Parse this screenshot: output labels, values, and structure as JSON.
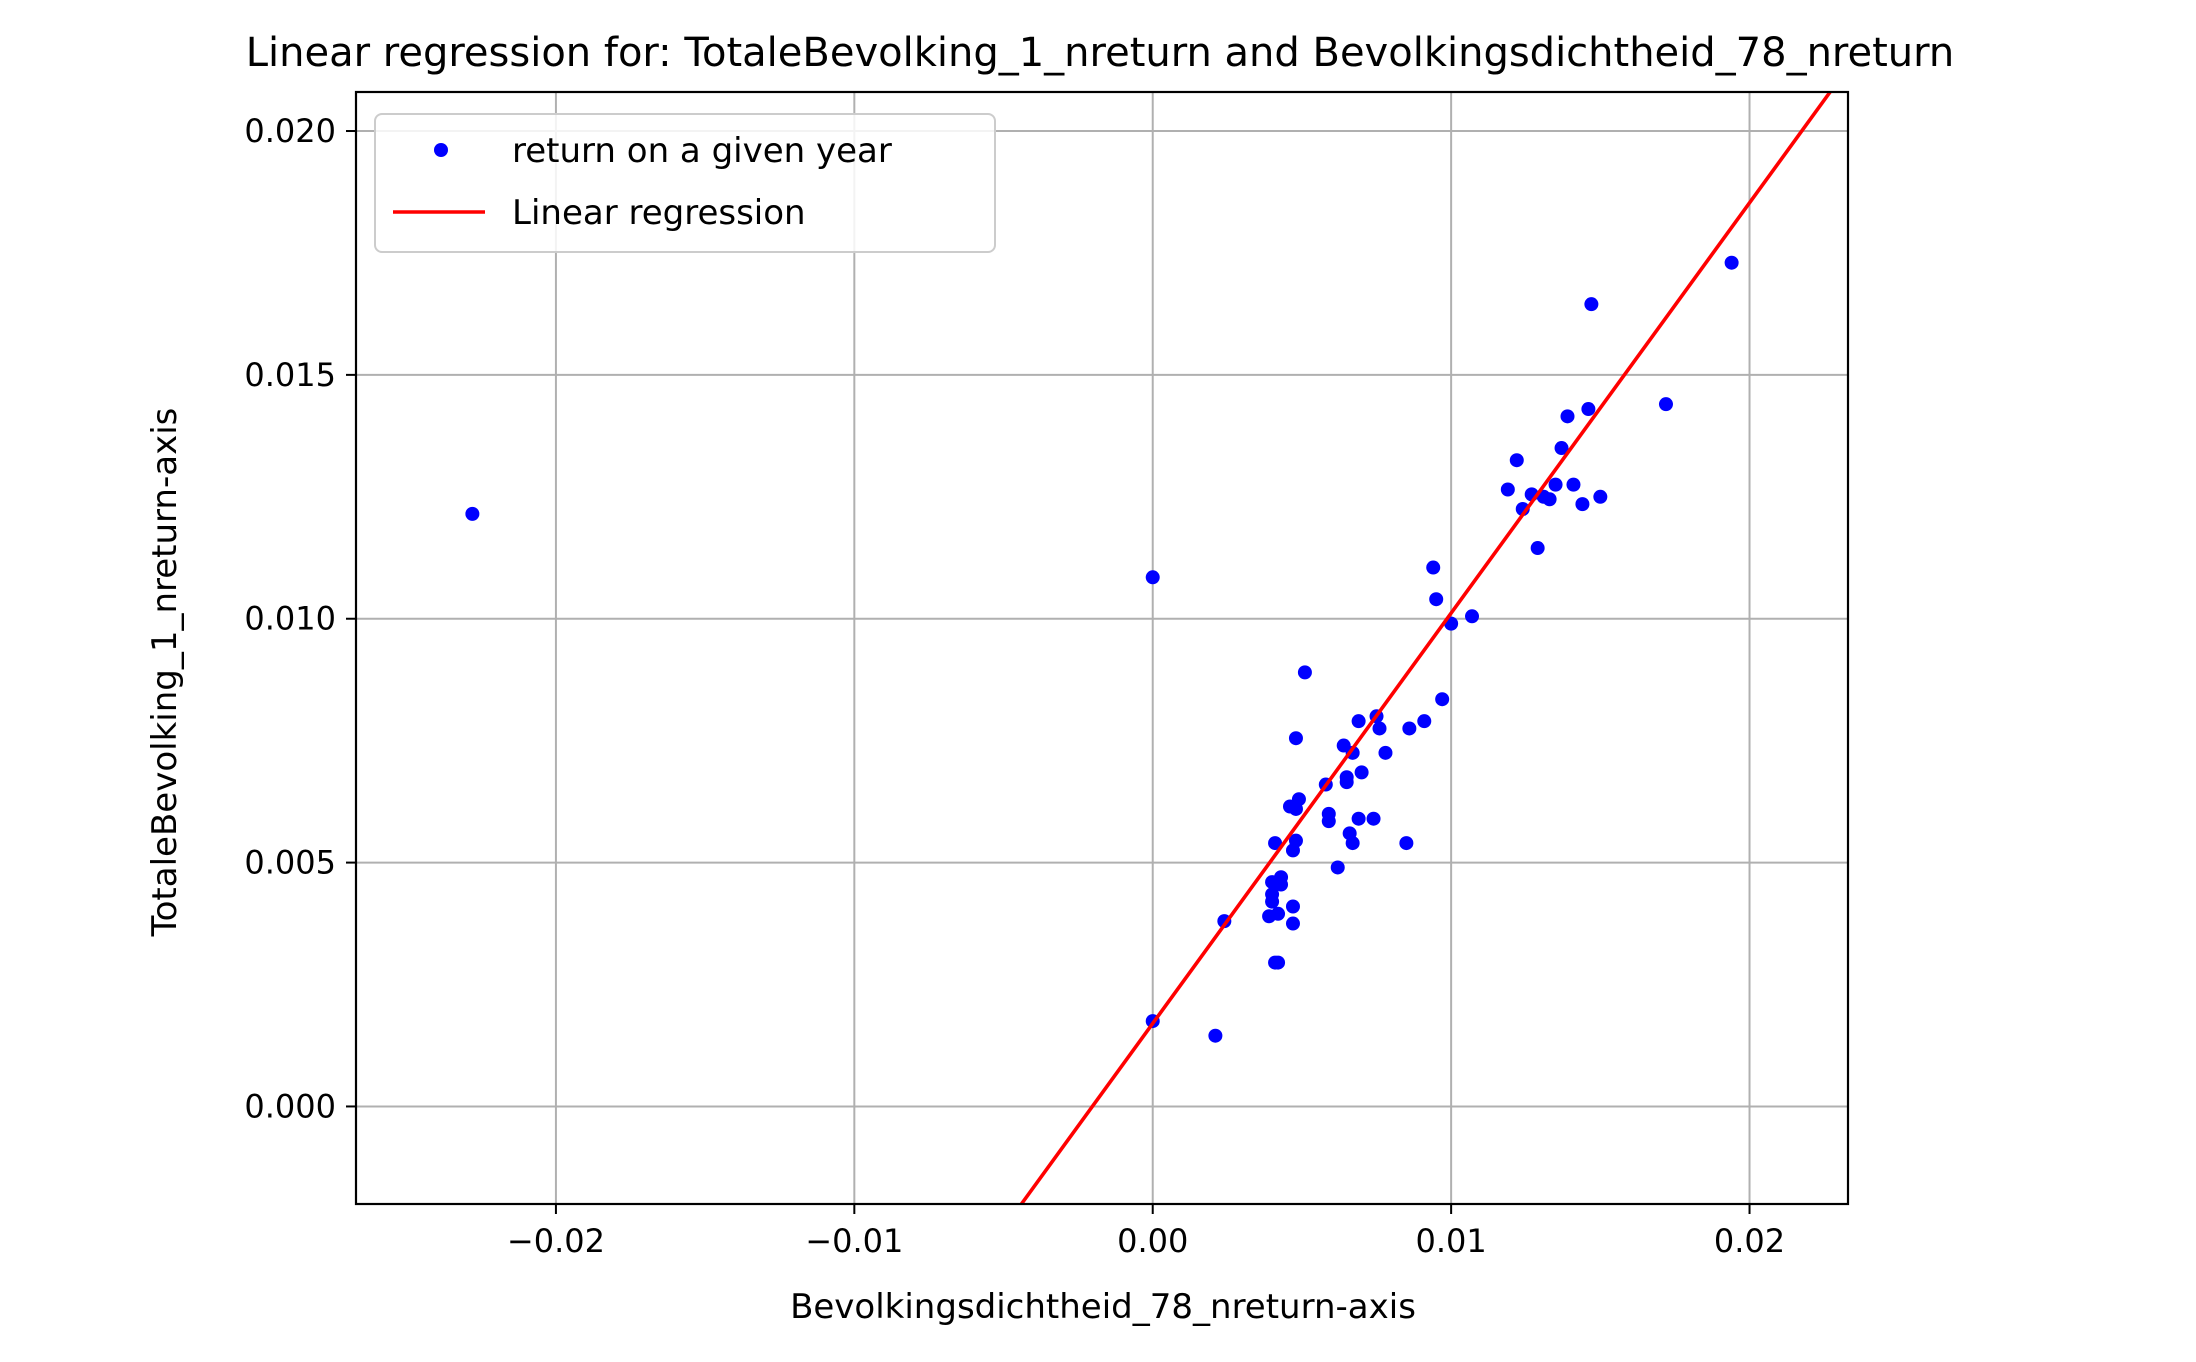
{
  "chart_data": {
    "type": "scatter",
    "title": "Linear regression for: TotaleBevolking_1_nreturn and Bevolkingsdichtheid_78_nreturn",
    "xlabel": "Bevolkingsdichtheid_78_nreturn-axis",
    "ylabel": "TotaleBevolking_1_nreturn-axis",
    "xlim": [
      -0.0267,
      0.0233
    ],
    "ylim": [
      -0.002,
      0.0208
    ],
    "x_ticks": [
      {
        "value": -0.02,
        "label": "−0.02"
      },
      {
        "value": -0.01,
        "label": "−0.01"
      },
      {
        "value": 0.0,
        "label": "0.00"
      },
      {
        "value": 0.01,
        "label": "0.01"
      },
      {
        "value": 0.02,
        "label": "0.02"
      }
    ],
    "y_ticks": [
      {
        "value": 0.0,
        "label": "0.000"
      },
      {
        "value": 0.005,
        "label": "0.005"
      },
      {
        "value": 0.01,
        "label": "0.010"
      },
      {
        "value": 0.015,
        "label": "0.015"
      },
      {
        "value": 0.02,
        "label": "0.020"
      }
    ],
    "grid": true,
    "legend_position": "top-left",
    "series": [
      {
        "name": "return on a given year",
        "kind": "scatter",
        "color": "#0000ff",
        "points": [
          [
            -0.0228,
            0.01215
          ],
          [
            0.0,
            0.01085
          ],
          [
            0.0,
            0.00175
          ],
          [
            0.0021,
            0.00145
          ],
          [
            0.0024,
            0.0038
          ],
          [
            0.0039,
            0.0039
          ],
          [
            0.004,
            0.0046
          ],
          [
            0.004,
            0.00435
          ],
          [
            0.004,
            0.0042
          ],
          [
            0.0041,
            0.0054
          ],
          [
            0.0041,
            0.00295
          ],
          [
            0.0042,
            0.00295
          ],
          [
            0.0042,
            0.00395
          ],
          [
            0.0043,
            0.0047
          ],
          [
            0.0043,
            0.00455
          ],
          [
            0.0046,
            0.00615
          ],
          [
            0.0047,
            0.00525
          ],
          [
            0.0047,
            0.0041
          ],
          [
            0.0047,
            0.00375
          ],
          [
            0.0048,
            0.00545
          ],
          [
            0.0048,
            0.0061
          ],
          [
            0.0048,
            0.00755
          ],
          [
            0.0049,
            0.0063
          ],
          [
            0.0051,
            0.0089
          ],
          [
            0.0058,
            0.0066
          ],
          [
            0.0059,
            0.006
          ],
          [
            0.0059,
            0.00585
          ],
          [
            0.0062,
            0.0049
          ],
          [
            0.0064,
            0.0074
          ],
          [
            0.0065,
            0.00665
          ],
          [
            0.0065,
            0.00675
          ],
          [
            0.0066,
            0.0056
          ],
          [
            0.0067,
            0.0054
          ],
          [
            0.0067,
            0.00725
          ],
          [
            0.0069,
            0.0079
          ],
          [
            0.0069,
            0.0059
          ],
          [
            0.007,
            0.00685
          ],
          [
            0.0074,
            0.0059
          ],
          [
            0.0075,
            0.008
          ],
          [
            0.0076,
            0.00775
          ],
          [
            0.0078,
            0.00725
          ],
          [
            0.0085,
            0.0054
          ],
          [
            0.0086,
            0.00775
          ],
          [
            0.0091,
            0.0079
          ],
          [
            0.0094,
            0.01105
          ],
          [
            0.0095,
            0.0104
          ],
          [
            0.0097,
            0.00835
          ],
          [
            0.01,
            0.0099
          ],
          [
            0.0107,
            0.01005
          ],
          [
            0.0119,
            0.01265
          ],
          [
            0.0122,
            0.01325
          ],
          [
            0.0124,
            0.01225
          ],
          [
            0.0127,
            0.01255
          ],
          [
            0.0129,
            0.01145
          ],
          [
            0.0131,
            0.0125
          ],
          [
            0.0133,
            0.01245
          ],
          [
            0.0135,
            0.01275
          ],
          [
            0.0137,
            0.0135
          ],
          [
            0.0139,
            0.01415
          ],
          [
            0.0141,
            0.01275
          ],
          [
            0.0144,
            0.01235
          ],
          [
            0.0146,
            0.0143
          ],
          [
            0.0147,
            0.01645
          ],
          [
            0.015,
            0.0125
          ],
          [
            0.0172,
            0.0144
          ],
          [
            0.0194,
            0.0173
          ]
        ]
      },
      {
        "name": "Linear regression",
        "kind": "line",
        "color": "#ff0000",
        "points": [
          [
            -0.0044,
            -0.002
          ],
          [
            0.0227,
            0.0208
          ]
        ]
      }
    ]
  }
}
